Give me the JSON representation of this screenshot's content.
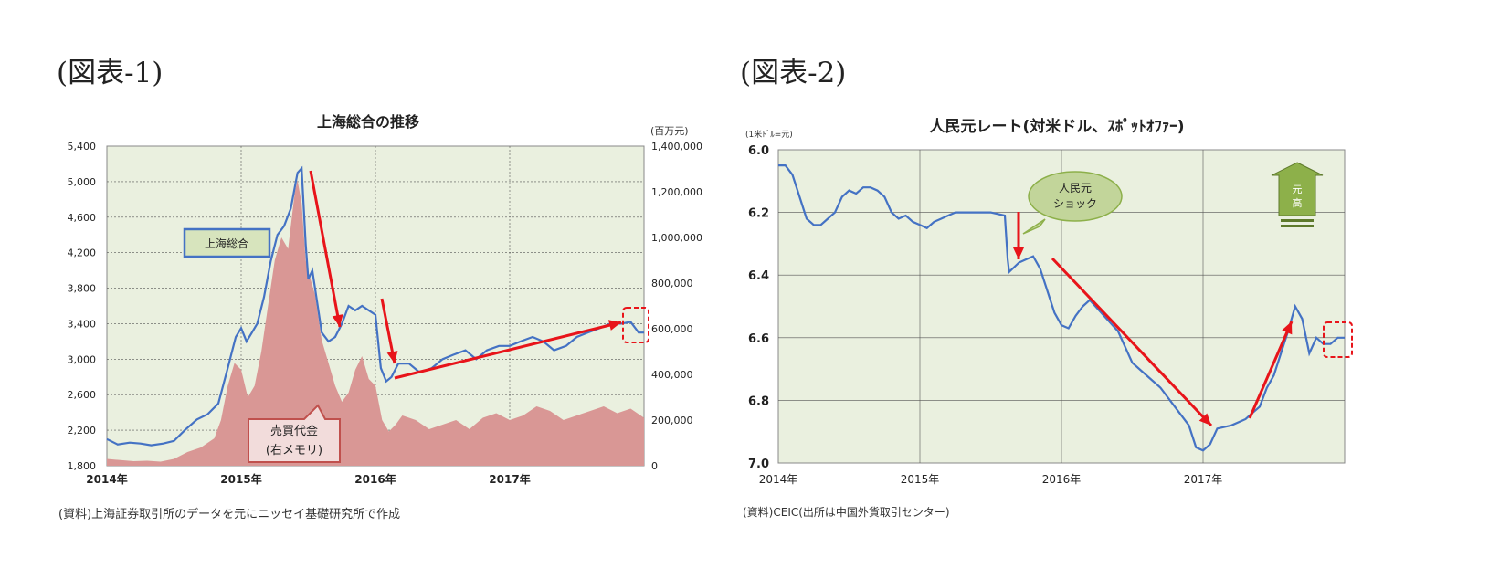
{
  "figure_labels": [
    "(図表-1)",
    "(図表-2)"
  ],
  "chart_data": [
    {
      "type": "line",
      "title": "上海総合の推移",
      "y_unit_right": "(百万元)",
      "y_ticks_left": [
        "5,400",
        "5,000",
        "4,600",
        "4,200",
        "3,800",
        "3,400",
        "3,000",
        "2,600",
        "2,200",
        "1,800"
      ],
      "y_ticks_right": [
        "1,400,000",
        "1,200,000",
        "1,000,000",
        "800,000",
        "600,000",
        "400,000",
        "200,000",
        "0"
      ],
      "x_ticks": [
        "2014年",
        "2015年",
        "2016年",
        "2017年"
      ],
      "ylim_left": [
        1800,
        5400
      ],
      "ylim_right": [
        0,
        1400000
      ],
      "xlim": [
        2014.0,
        2018.0
      ],
      "grid": true,
      "series": [
        {
          "name": "上海総合",
          "axis": "left",
          "color": "#4472c4",
          "x": [
            2014.0,
            2014.08,
            2014.17,
            2014.25,
            2014.33,
            2014.42,
            2014.5,
            2014.58,
            2014.67,
            2014.75,
            2014.83,
            2014.9,
            2014.96,
            2015.0,
            2015.04,
            2015.08,
            2015.12,
            2015.17,
            2015.22,
            2015.27,
            2015.32,
            2015.37,
            2015.42,
            2015.45,
            2015.48,
            2015.5,
            2015.53,
            2015.57,
            2015.6,
            2015.65,
            2015.7,
            2015.75,
            2015.8,
            2015.85,
            2015.9,
            2015.95,
            2016.0,
            2016.04,
            2016.08,
            2016.12,
            2016.17,
            2016.25,
            2016.33,
            2016.42,
            2016.5,
            2016.58,
            2016.67,
            2016.75,
            2016.83,
            2016.92,
            2017.0,
            2017.08,
            2017.17,
            2017.25,
            2017.33,
            2017.42,
            2017.5,
            2017.58,
            2017.67,
            2017.75,
            2017.83,
            2017.9,
            2017.96,
            2018.0
          ],
          "values": [
            2100,
            2040,
            2060,
            2050,
            2030,
            2050,
            2080,
            2200,
            2320,
            2380,
            2500,
            2900,
            3250,
            3350,
            3200,
            3300,
            3400,
            3700,
            4100,
            4400,
            4500,
            4700,
            5100,
            5150,
            4300,
            3900,
            4000,
            3600,
            3300,
            3200,
            3250,
            3400,
            3600,
            3550,
            3600,
            3550,
            3500,
            2900,
            2750,
            2800,
            2950,
            2950,
            2850,
            2900,
            3000,
            3050,
            3100,
            3000,
            3100,
            3150,
            3150,
            3200,
            3250,
            3200,
            3100,
            3150,
            3250,
            3300,
            3350,
            3400,
            3400,
            3420,
            3300,
            3300
          ]
        },
        {
          "name": "売買代金(右メモリ)",
          "axis": "right",
          "type": "area",
          "color": "#d99795",
          "x": [
            2014.0,
            2014.1,
            2014.2,
            2014.3,
            2014.4,
            2014.5,
            2014.6,
            2014.7,
            2014.8,
            2014.85,
            2014.9,
            2014.95,
            2015.0,
            2015.05,
            2015.1,
            2015.15,
            2015.2,
            2015.25,
            2015.3,
            2015.35,
            2015.4,
            2015.42,
            2015.45,
            2015.48,
            2015.5,
            2015.55,
            2015.6,
            2015.65,
            2015.7,
            2015.75,
            2015.8,
            2015.85,
            2015.9,
            2015.95,
            2016.0,
            2016.05,
            2016.1,
            2016.15,
            2016.2,
            2016.3,
            2016.4,
            2016.5,
            2016.6,
            2016.7,
            2016.8,
            2016.9,
            2017.0,
            2017.1,
            2017.2,
            2017.3,
            2017.4,
            2017.5,
            2017.6,
            2017.7,
            2017.8,
            2017.9,
            2018.0
          ],
          "values": [
            30000,
            25000,
            20000,
            22000,
            18000,
            30000,
            60000,
            80000,
            120000,
            200000,
            350000,
            450000,
            420000,
            300000,
            350000,
            500000,
            700000,
            900000,
            1000000,
            950000,
            1200000,
            1250000,
            1150000,
            900000,
            850000,
            750000,
            550000,
            450000,
            350000,
            280000,
            320000,
            420000,
            480000,
            380000,
            350000,
            200000,
            150000,
            180000,
            220000,
            200000,
            160000,
            180000,
            200000,
            160000,
            210000,
            230000,
            200000,
            220000,
            260000,
            240000,
            200000,
            220000,
            240000,
            260000,
            230000,
            250000,
            210000
          ]
        }
      ],
      "labels": [
        "上海総合",
        "売買代金",
        "(右メモリ)"
      ],
      "source": "(資料)上海証券取引所のデータを元にニッセイ基礎研究所で作成"
    },
    {
      "type": "line",
      "title": "人民元レート(対米ドル、ｽﾎﾟｯﾄｵﾌｧｰ)",
      "y_unit_left": "(1米ﾄﾞﾙ=元)",
      "y_ticks_left": [
        "6.0",
        "6.2",
        "6.4",
        "6.6",
        "6.8",
        "7.0"
      ],
      "x_ticks": [
        "2014年",
        "2015年",
        "2016年",
        "2017年"
      ],
      "ylim": [
        7.0,
        6.0
      ],
      "xlim": [
        2014.0,
        2018.0
      ],
      "grid": true,
      "series": [
        {
          "name": "人民元レート",
          "color": "#4472c4",
          "x": [
            2014.0,
            2014.05,
            2014.1,
            2014.15,
            2014.2,
            2014.25,
            2014.3,
            2014.35,
            2014.4,
            2014.45,
            2014.5,
            2014.55,
            2014.6,
            2014.65,
            2014.7,
            2014.75,
            2014.8,
            2014.85,
            2014.9,
            2014.95,
            2015.0,
            2015.05,
            2015.1,
            2015.15,
            2015.2,
            2015.25,
            2015.3,
            2015.4,
            2015.5,
            2015.6,
            2015.62,
            2015.63,
            2015.7,
            2015.75,
            2015.8,
            2015.85,
            2015.9,
            2015.95,
            2016.0,
            2016.05,
            2016.1,
            2016.15,
            2016.2,
            2016.3,
            2016.4,
            2016.5,
            2016.6,
            2016.7,
            2016.8,
            2016.9,
            2016.95,
            2017.0,
            2017.05,
            2017.1,
            2017.2,
            2017.3,
            2017.35,
            2017.4,
            2017.45,
            2017.5,
            2017.55,
            2017.6,
            2017.65,
            2017.7,
            2017.75,
            2017.8,
            2017.85,
            2017.9,
            2017.95,
            2018.0
          ],
          "values": [
            6.05,
            6.05,
            6.08,
            6.15,
            6.22,
            6.24,
            6.24,
            6.22,
            6.2,
            6.15,
            6.13,
            6.14,
            6.12,
            6.12,
            6.13,
            6.15,
            6.2,
            6.22,
            6.21,
            6.23,
            6.24,
            6.25,
            6.23,
            6.22,
            6.21,
            6.2,
            6.2,
            6.2,
            6.2,
            6.21,
            6.35,
            6.39,
            6.36,
            6.35,
            6.34,
            6.38,
            6.45,
            6.52,
            6.56,
            6.57,
            6.53,
            6.5,
            6.48,
            6.53,
            6.58,
            6.68,
            6.72,
            6.76,
            6.82,
            6.88,
            6.95,
            6.96,
            6.94,
            6.89,
            6.88,
            6.86,
            6.84,
            6.82,
            6.76,
            6.72,
            6.65,
            6.58,
            6.5,
            6.54,
            6.65,
            6.6,
            6.62,
            6.62,
            6.6,
            6.6
          ]
        }
      ],
      "labels": [
        "人民元",
        "ショック",
        "元",
        "高"
      ],
      "source": "(資料)CEIC(出所は中国外貨取引センター)"
    }
  ]
}
